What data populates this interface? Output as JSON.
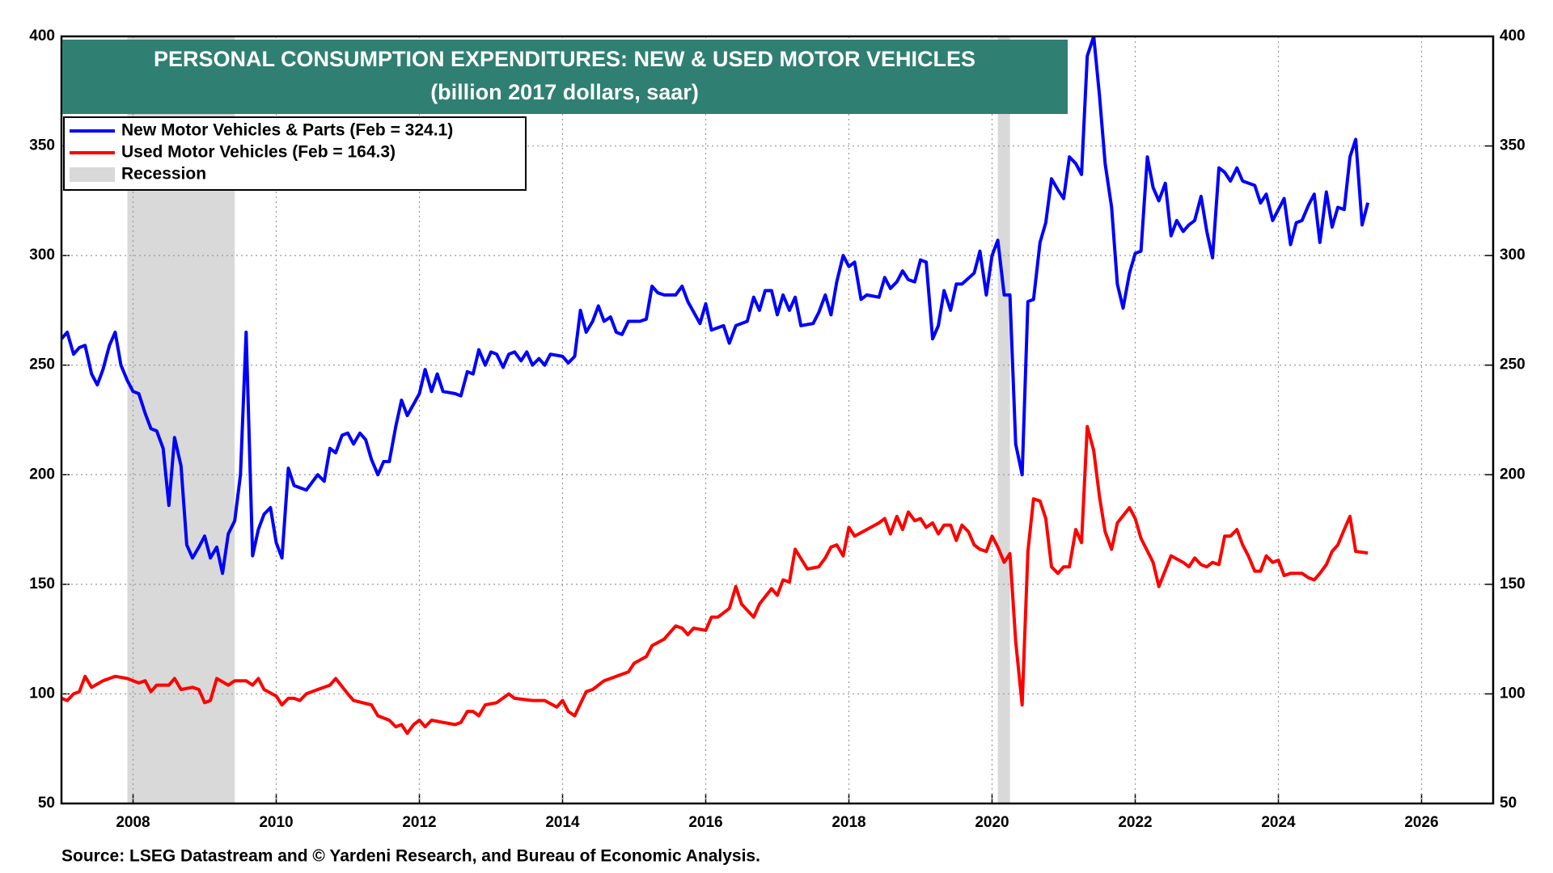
{
  "chart_data": {
    "type": "line",
    "title": "PERSONAL CONSUMPTION EXPENDITURES: NEW & USED MOTOR VEHICLES",
    "subtitle": "(billion 2017 dollars, saar)",
    "source": "Source: LSEG Datastream and © Yardeni Research, and Bureau of Economic Analysis.",
    "xlim": [
      2007,
      2027
    ],
    "xticks": [
      2008,
      2010,
      2012,
      2014,
      2016,
      2018,
      2020,
      2022,
      2024,
      2026
    ],
    "ylim": [
      50,
      400
    ],
    "yticks": [
      50,
      100,
      150,
      200,
      250,
      300,
      350,
      400
    ],
    "y2lim": [
      50,
      400
    ],
    "y2ticks": [
      50,
      100,
      150,
      200,
      250,
      300,
      350,
      400
    ],
    "grid": true,
    "legend": "upper left",
    "recessions": {
      "name": "Recession",
      "color": "#d9d9d9",
      "periods": [
        [
          2007.92,
          2009.42
        ],
        [
          2020.08,
          2020.25
        ]
      ]
    },
    "series": [
      {
        "name": "New Motor Vehicles & Parts  (Feb = 324.1)",
        "color": "#0000ff",
        "x": [
          2007.0,
          2007.08,
          2007.17,
          2007.25,
          2007.33,
          2007.42,
          2007.5,
          2007.58,
          2007.67,
          2007.75,
          2007.83,
          2007.92,
          2008.0,
          2008.08,
          2008.17,
          2008.25,
          2008.33,
          2008.42,
          2008.5,
          2008.58,
          2008.67,
          2008.75,
          2008.83,
          2008.92,
          2009.0,
          2009.08,
          2009.17,
          2009.25,
          2009.33,
          2009.42,
          2009.5,
          2009.58,
          2009.67,
          2009.75,
          2009.83,
          2009.92,
          2010.0,
          2010.08,
          2010.17,
          2010.25,
          2010.42,
          2010.58,
          2010.67,
          2010.75,
          2010.83,
          2010.92,
          2011.0,
          2011.08,
          2011.17,
          2011.25,
          2011.33,
          2011.42,
          2011.5,
          2011.58,
          2011.67,
          2011.75,
          2011.83,
          2012.0,
          2012.08,
          2012.17,
          2012.25,
          2012.33,
          2012.5,
          2012.58,
          2012.67,
          2012.75,
          2012.83,
          2012.92,
          2013.0,
          2013.08,
          2013.17,
          2013.25,
          2013.33,
          2013.42,
          2013.5,
          2013.58,
          2013.67,
          2013.75,
          2013.83,
          2014.0,
          2014.08,
          2014.17,
          2014.25,
          2014.33,
          2014.42,
          2014.5,
          2014.58,
          2014.67,
          2014.75,
          2014.83,
          2014.92,
          2015.08,
          2015.17,
          2015.25,
          2015.33,
          2015.42,
          2015.58,
          2015.67,
          2015.75,
          2015.92,
          2016.0,
          2016.08,
          2016.25,
          2016.33,
          2016.42,
          2016.58,
          2016.67,
          2016.75,
          2016.83,
          2016.92,
          2017.0,
          2017.08,
          2017.17,
          2017.25,
          2017.33,
          2017.5,
          2017.58,
          2017.67,
          2017.75,
          2017.83,
          2017.92,
          2018.0,
          2018.08,
          2018.17,
          2018.25,
          2018.42,
          2018.5,
          2018.58,
          2018.67,
          2018.75,
          2018.83,
          2018.92,
          2019.0,
          2019.08,
          2019.17,
          2019.25,
          2019.33,
          2019.42,
          2019.5,
          2019.58,
          2019.75,
          2019.83,
          2019.92,
          2020.0,
          2020.08,
          2020.17,
          2020.25,
          2020.33,
          2020.42,
          2020.5,
          2020.58,
          2020.67,
          2020.75,
          2020.83,
          2020.92,
          2021.0,
          2021.08,
          2021.17,
          2021.25,
          2021.33,
          2021.42,
          2021.5,
          2021.58,
          2021.67,
          2021.75,
          2021.83,
          2021.92,
          2022.0,
          2022.08,
          2022.17,
          2022.25,
          2022.33,
          2022.42,
          2022.5,
          2022.58,
          2022.67,
          2022.75,
          2022.83,
          2022.92,
          2023.0,
          2023.08,
          2023.17,
          2023.25,
          2023.33,
          2023.42,
          2023.5,
          2023.67,
          2023.75,
          2023.83,
          2023.92,
          2024.0,
          2024.08,
          2024.17,
          2024.25,
          2024.33,
          2024.42,
          2024.5,
          2024.58,
          2024.67,
          2024.75,
          2024.83,
          2024.92,
          2025.0,
          2025.08,
          2025.17,
          2025.25
        ],
        "values": [
          262,
          265,
          255,
          258,
          259,
          246,
          241,
          248,
          259,
          265,
          250,
          243,
          238,
          237,
          228,
          221,
          220,
          212,
          186,
          217,
          204,
          168,
          162,
          167,
          172,
          162,
          167,
          155,
          173,
          179,
          200,
          265,
          163,
          175,
          182,
          185,
          169,
          162,
          203,
          195,
          193,
          200,
          197,
          212,
          210,
          218,
          219,
          214,
          219,
          216,
          207,
          200,
          206,
          206,
          222,
          234,
          227,
          237,
          248,
          238,
          246,
          238,
          237,
          236,
          247,
          246,
          257,
          250,
          256,
          255,
          249,
          255,
          256,
          252,
          256,
          250,
          253,
          250,
          255,
          254,
          251,
          254,
          275,
          265,
          270,
          277,
          270,
          272,
          265,
          264,
          270,
          270,
          271,
          286,
          283,
          282,
          282,
          286,
          279,
          269,
          278,
          266,
          268,
          260,
          268,
          270,
          281,
          275,
          284,
          284,
          273,
          282,
          275,
          281,
          268,
          269,
          274,
          282,
          273,
          288,
          300,
          295,
          297,
          280,
          282,
          281,
          290,
          285,
          288,
          293,
          289,
          288,
          298,
          297,
          262,
          268,
          284,
          275,
          287,
          287,
          292,
          302,
          282,
          300,
          307,
          282,
          282,
          214,
          200,
          279,
          280,
          306,
          315,
          335,
          330,
          326,
          345,
          342,
          337,
          391,
          400,
          373,
          342,
          322,
          287,
          276,
          292,
          301,
          302,
          345,
          331,
          325,
          333,
          309,
          316,
          311,
          314,
          316,
          327,
          311,
          299,
          340,
          338,
          334,
          340,
          334,
          332,
          324,
          328,
          316,
          321,
          326,
          305,
          315,
          316,
          323,
          328,
          306,
          329,
          313,
          322,
          321,
          345,
          353,
          314,
          324.1
        ]
      },
      {
        "name": "Used Motor Vehicles  (Feb = 164.3)",
        "color": "#ff0000",
        "x": [
          2007.0,
          2007.08,
          2007.17,
          2007.25,
          2007.33,
          2007.42,
          2007.58,
          2007.75,
          2007.92,
          2008.08,
          2008.17,
          2008.25,
          2008.33,
          2008.5,
          2008.58,
          2008.67,
          2008.83,
          2008.92,
          2009.0,
          2009.08,
          2009.17,
          2009.33,
          2009.42,
          2009.58,
          2009.67,
          2009.75,
          2009.83,
          2010.0,
          2010.08,
          2010.17,
          2010.25,
          2010.33,
          2010.42,
          2010.58,
          2010.75,
          2010.83,
          2011.0,
          2011.08,
          2011.33,
          2011.42,
          2011.58,
          2011.67,
          2011.75,
          2011.83,
          2011.92,
          2012.0,
          2012.08,
          2012.17,
          2012.33,
          2012.5,
          2012.58,
          2012.67,
          2012.75,
          2012.83,
          2012.92,
          2013.08,
          2013.25,
          2013.33,
          2013.58,
          2013.75,
          2013.92,
          2014.0,
          2014.08,
          2014.17,
          2014.33,
          2014.42,
          2014.58,
          2014.75,
          2014.92,
          2015.0,
          2015.17,
          2015.25,
          2015.42,
          2015.58,
          2015.67,
          2015.75,
          2015.83,
          2016.0,
          2016.08,
          2016.17,
          2016.33,
          2016.42,
          2016.5,
          2016.67,
          2016.75,
          2016.92,
          2017.0,
          2017.08,
          2017.17,
          2017.25,
          2017.42,
          2017.58,
          2017.67,
          2017.75,
          2017.83,
          2017.92,
          2018.0,
          2018.08,
          2018.25,
          2018.42,
          2018.5,
          2018.58,
          2018.67,
          2018.75,
          2018.83,
          2018.92,
          2019.0,
          2019.08,
          2019.17,
          2019.25,
          2019.33,
          2019.42,
          2019.5,
          2019.58,
          2019.67,
          2019.75,
          2019.83,
          2019.92,
          2020.0,
          2020.08,
          2020.17,
          2020.25,
          2020.33,
          2020.42,
          2020.5,
          2020.58,
          2020.67,
          2020.75,
          2020.83,
          2020.92,
          2021.0,
          2021.08,
          2021.17,
          2021.25,
          2021.33,
          2021.42,
          2021.5,
          2021.58,
          2021.67,
          2021.75,
          2021.92,
          2022.0,
          2022.08,
          2022.25,
          2022.33,
          2022.5,
          2022.67,
          2022.75,
          2022.83,
          2022.92,
          2023.0,
          2023.08,
          2023.17,
          2023.25,
          2023.33,
          2023.42,
          2023.5,
          2023.58,
          2023.67,
          2023.75,
          2023.83,
          2023.92,
          2024.0,
          2024.08,
          2024.17,
          2024.33,
          2024.42,
          2024.5,
          2024.58,
          2024.67,
          2024.75,
          2024.83,
          2024.92,
          2025.0,
          2025.08,
          2025.25
        ],
        "values": [
          98,
          97,
          100,
          101,
          108,
          103,
          106,
          108,
          107,
          105,
          106,
          101,
          104,
          104,
          107,
          102,
          103,
          102,
          96,
          97,
          107,
          104,
          106,
          106,
          104,
          107,
          102,
          99,
          95,
          98,
          98,
          97,
          100,
          102,
          104,
          107,
          100,
          97,
          95,
          90,
          88,
          85,
          86,
          82,
          86,
          88,
          85,
          88,
          87,
          86,
          87,
          92,
          92,
          90,
          95,
          96,
          100,
          98,
          97,
          97,
          94,
          97,
          92,
          90,
          101,
          102,
          106,
          108,
          110,
          114,
          117,
          122,
          125,
          131,
          130,
          127,
          130,
          129,
          135,
          135,
          139,
          149,
          141,
          135,
          141,
          148,
          145,
          152,
          151,
          166,
          157,
          158,
          162,
          167,
          168,
          163,
          176,
          172,
          175,
          178,
          180,
          173,
          181,
          175,
          183,
          179,
          180,
          176,
          178,
          173,
          177,
          177,
          170,
          177,
          174,
          168,
          166,
          165,
          172,
          167,
          160,
          164,
          124,
          95,
          165,
          189,
          188,
          180,
          158,
          155,
          158,
          158,
          175,
          169,
          222,
          211,
          190,
          174,
          166,
          178,
          185,
          180,
          171,
          160,
          149,
          163,
          160,
          158,
          162,
          159,
          158,
          160,
          159,
          172,
          172,
          175,
          168,
          163,
          156,
          156,
          163,
          160,
          161,
          154,
          155,
          155,
          153,
          152,
          155,
          159,
          165,
          168,
          175,
          181,
          165,
          164.3
        ]
      }
    ]
  }
}
